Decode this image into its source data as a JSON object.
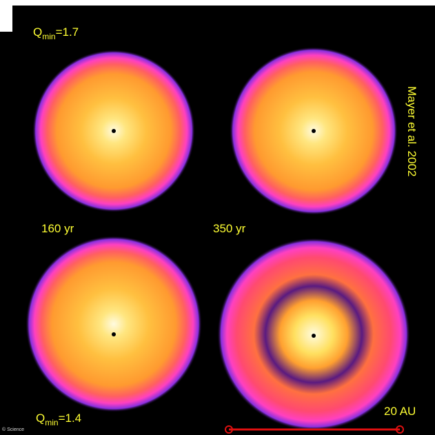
{
  "labels": {
    "q_top": {
      "symbol": "Q",
      "subscript": "min",
      "value": "=1.7"
    },
    "time_1": "160 yr",
    "time_2": "350 yr",
    "q_bottom": {
      "symbol": "Q",
      "subscript": "min",
      "value": "=1.4"
    },
    "scale_bar": "20 AU",
    "citation": "Mayer et al. 2002",
    "copyright": "© Science"
  }
}
